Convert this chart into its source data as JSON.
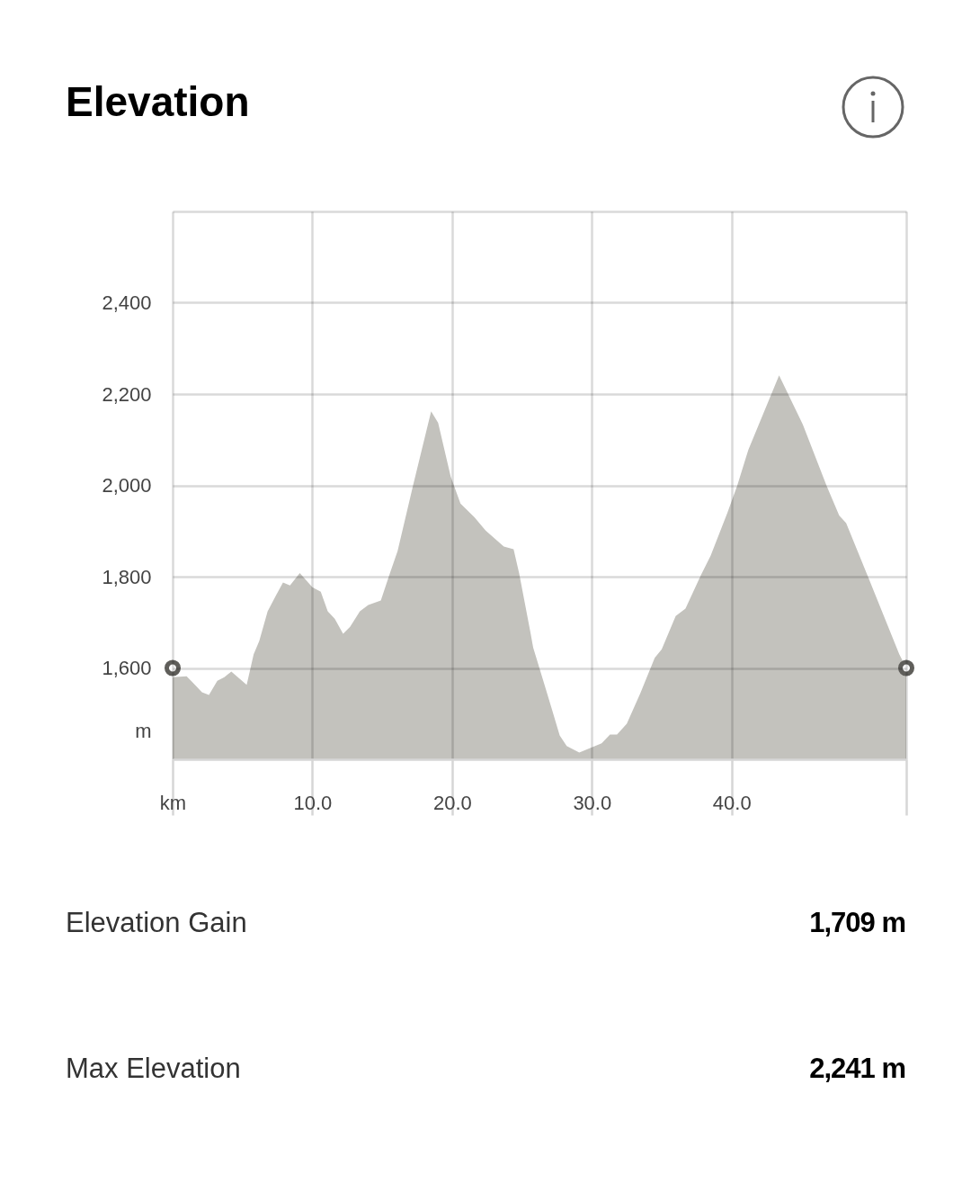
{
  "chart_data": {
    "type": "area",
    "title": "Elevation",
    "x": [
      0,
      1.0,
      1.35,
      2.1,
      2.6,
      3.2,
      3.7,
      4.2,
      5.3,
      5.8,
      6.2,
      6.8,
      7.4,
      7.9,
      8.4,
      9.1,
      10.0,
      10.6,
      11.1,
      11.6,
      12.2,
      12.7,
      13.4,
      14.0,
      14.9,
      15.5,
      16.1,
      17.2,
      18.5,
      19.0,
      19.9,
      20.6,
      21.6,
      22.4,
      23.7,
      24.4,
      24.8,
      25.6,
      25.8,
      27.1,
      27.7,
      28.2,
      29.1,
      30.7,
      31.3,
      31.8,
      32.5,
      33.5,
      34.5,
      35.0,
      36.0,
      36.7,
      37.8,
      38.5,
      39.7,
      40.4,
      41.2,
      43.4,
      45.1,
      46.8,
      47.7,
      48.2,
      49.8,
      52.0,
      52.5
    ],
    "series": [
      {
        "color": "#c3c2bd",
        "values": [
          1580,
          1582,
          1571,
          1547,
          1541,
          1572,
          1580,
          1592,
          1563,
          1630,
          1659,
          1724,
          1759,
          1787,
          1781,
          1808,
          1777,
          1767,
          1724,
          1708,
          1675,
          1690,
          1724,
          1738,
          1748,
          1803,
          1856,
          1999,
          2162,
          2137,
          2019,
          1960,
          1930,
          1901,
          1866,
          1860,
          1807,
          1679,
          1645,
          1514,
          1452,
          1429,
          1415,
          1435,
          1454,
          1454,
          1478,
          1547,
          1622,
          1641,
          1714,
          1730,
          1803,
          1846,
          1940,
          1999,
          2078,
          2241,
          2133,
          1999,
          1934,
          1917,
          1797,
          1630,
          1600
        ]
      },
      {
        "type": "scatter",
        "x": [
          0,
          52.5
        ],
        "values": [
          1600,
          1600
        ],
        "color": "#5f5e5a",
        "marker": "circle"
      }
    ],
    "xlim": [
      0,
      52.5
    ],
    "ylim": [
      1400,
      2600
    ],
    "xticks": [
      {
        "value": 0,
        "label": "km"
      },
      {
        "value": 10,
        "label": "10.0"
      },
      {
        "value": 20,
        "label": "20.0"
      },
      {
        "value": 30,
        "label": "30.0"
      },
      {
        "value": 40,
        "label": "40.0"
      },
      {
        "value": 52.5,
        "label": null
      }
    ],
    "ylabel": "m",
    "yticks": [
      {
        "value": 1600,
        "label": "1,600"
      },
      {
        "value": 1800,
        "label": "1,800"
      },
      {
        "value": 2000,
        "label": "2,000"
      },
      {
        "value": 2200,
        "label": "2,200"
      },
      {
        "value": 2400,
        "label": "2,400"
      },
      {
        "value": 2600,
        "label": null
      }
    ],
    "grid": true,
    "annotations": [
      "Elevation Gain",
      "1,709 m",
      "Max Elevation",
      "2,241 m"
    ]
  }
}
